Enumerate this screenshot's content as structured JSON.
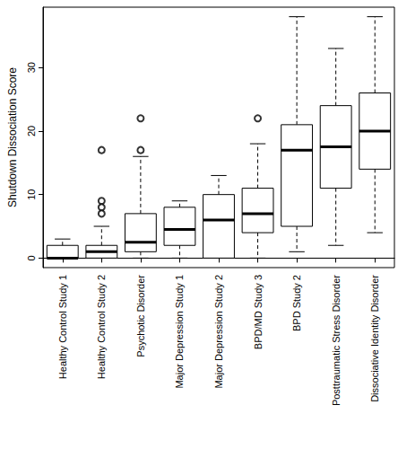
{
  "chart_data": {
    "type": "boxplot",
    "y_label": "Shutdown Dissociation Score",
    "categories": [
      "Healthy Control Study 1",
      "Healthy Control Study 2",
      "Psychotic Disorder",
      "Major Depression Study 1",
      "Major Depression Study 2",
      "BPD/MD Study 3",
      "BPD Study 2",
      "Posttraumatic Stress Disorder",
      "Dissociative Identity Disorder"
    ],
    "values": [
      [
        0,
        0,
        0,
        2,
        3
      ],
      [
        0,
        0,
        1,
        2,
        5
      ],
      [
        0,
        1,
        2.5,
        7,
        16
      ],
      [
        0,
        2,
        4.5,
        8,
        9
      ],
      [
        0,
        0,
        6,
        10,
        13
      ],
      [
        0,
        4,
        7,
        11,
        18
      ],
      [
        1,
        5,
        17,
        21,
        38
      ],
      [
        2,
        11,
        17.5,
        24,
        33
      ],
      [
        4,
        14,
        20,
        26,
        38
      ]
    ],
    "outliers": [
      [],
      [
        17,
        9,
        8,
        7
      ],
      [
        17,
        22
      ],
      [],
      [],
      [
        22
      ],
      [],
      [],
      []
    ],
    "color": "#000000",
    "ylim": [
      -1.5,
      39.5
    ],
    "yticks": [
      0,
      10,
      20,
      30
    ],
    "grid": false
  }
}
